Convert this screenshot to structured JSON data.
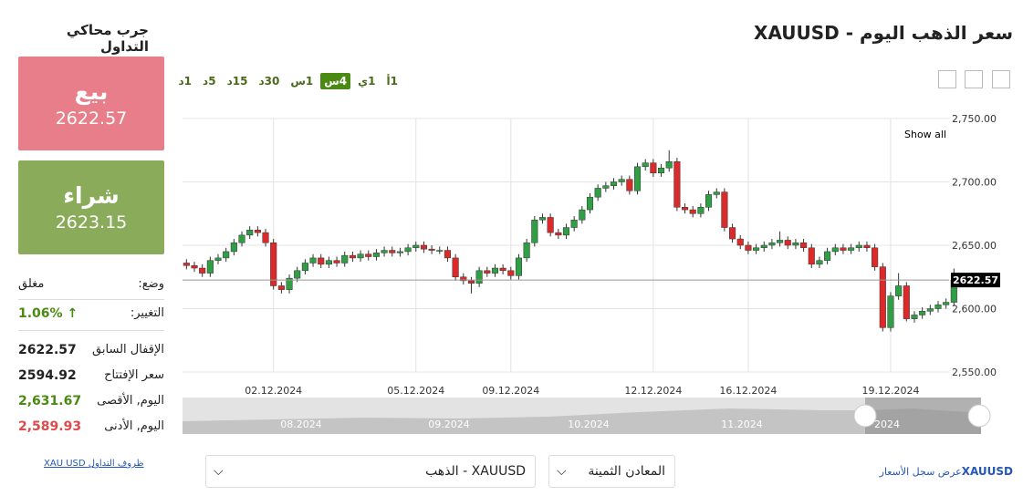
{
  "header": {
    "title": "سعر الذهب اليوم - XAUUSD",
    "simulator_title": "جرب محاكي التداول"
  },
  "sell": {
    "label": "بيع",
    "price": "2622.57"
  },
  "buy": {
    "label": "شراء",
    "price": "2623.15"
  },
  "status": {
    "label": "وضع:",
    "value": "مغلق"
  },
  "change": {
    "label": "التغيير:",
    "value": "1.06%"
  },
  "stats": [
    {
      "label": "الإقفال السابق",
      "value": "2622.57"
    },
    {
      "label": "سعر الإفتتاح",
      "value": "2594.92"
    },
    {
      "label": "اليوم, الأقصى",
      "value": "2,631.67"
    },
    {
      "label": "اليوم, الأدنى",
      "value": "2,589.93"
    }
  ],
  "timeframes": [
    "1أ",
    "1ي",
    "4س",
    "1س",
    "30د",
    "15د",
    "5د",
    "1د"
  ],
  "active_timeframe": "4س",
  "footer": {
    "terms_link": "XAU USD ظروف التداول",
    "instrument_select": "XAUUSD - الذهب",
    "category_select": "المعادن الثمينة",
    "history_symbol": "XAUUSD",
    "history_text": "عرض سجل الأسعار"
  },
  "chart_data": {
    "type": "candlestick",
    "categories": [
      null,
      null,
      null,
      null,
      null,
      null,
      null,
      null,
      null,
      null,
      null,
      "02.12.2024",
      null,
      null,
      null,
      null,
      null,
      null,
      null,
      null,
      null,
      null,
      null,
      null,
      null,
      null,
      null,
      null,
      null,
      "05.12.2024",
      null,
      null,
      null,
      null,
      null,
      null,
      null,
      null,
      null,
      null,
      null,
      "09.12.2024",
      null,
      null,
      null,
      null,
      null,
      null,
      null,
      null,
      null,
      null,
      null,
      null,
      null,
      null,
      null,
      null,
      null,
      "12.12.2024",
      null,
      null,
      null,
      null,
      null,
      null,
      null,
      null,
      null,
      null,
      null,
      "16.12.2024",
      null,
      null,
      null,
      null,
      null,
      null,
      null,
      null,
      null,
      null,
      null,
      null,
      null,
      null,
      null,
      null,
      null,
      "19.12.2024",
      null,
      null,
      null,
      null,
      null,
      null,
      null,
      null
    ],
    "open": [
      2636,
      2634,
      2632,
      2628,
      2638,
      2640,
      2645,
      2652,
      2658,
      2662,
      2660,
      2652,
      2618,
      2615,
      2624,
      2630,
      2636,
      2640,
      2635,
      2638,
      2636,
      2642,
      2640,
      2643,
      2641,
      2644,
      2646,
      2644,
      2645,
      2648,
      2650,
      2647,
      2646,
      2646,
      2640,
      2625,
      2622,
      2620,
      2630,
      2628,
      2632,
      2630,
      2626,
      2640,
      2652,
      2670,
      2672,
      2660,
      2658,
      2664,
      2670,
      2678,
      2688,
      2695,
      2697,
      2700,
      2702,
      2693,
      2712,
      2715,
      2707,
      2711,
      2716,
      2680,
      2678,
      2675,
      2680,
      2690,
      2692,
      2664,
      2655,
      2650,
      2646,
      2648,
      2650,
      2652,
      2654,
      2650,
      2652,
      2648,
      2635,
      2638,
      2645,
      2648,
      2646,
      2648,
      2650,
      2648,
      2633,
      2585,
      2610,
      2618,
      2592,
      2595,
      2598,
      2600,
      2603,
      2605
    ],
    "high": [
      2639,
      2637,
      2635,
      2641,
      2643,
      2648,
      2655,
      2661,
      2665,
      2665,
      2663,
      2655,
      2621,
      2627,
      2633,
      2639,
      2643,
      2643,
      2641,
      2641,
      2645,
      2645,
      2646,
      2646,
      2647,
      2649,
      2649,
      2648,
      2651,
      2653,
      2653,
      2650,
      2649,
      2649,
      2643,
      2628,
      2625,
      2633,
      2633,
      2635,
      2635,
      2633,
      2643,
      2655,
      2673,
      2675,
      2675,
      2663,
      2667,
      2673,
      2681,
      2691,
      2698,
      2700,
      2703,
      2705,
      2705,
      2715,
      2718,
      2718,
      2714,
      2725,
      2719,
      2683,
      2681,
      2683,
      2693,
      2695,
      2695,
      2667,
      2658,
      2653,
      2651,
      2653,
      2655,
      2661,
      2657,
      2655,
      2655,
      2651,
      2641,
      2648,
      2651,
      2651,
      2651,
      2653,
      2653,
      2651,
      2636,
      2613,
      2628,
      2621,
      2598,
      2601,
      2603,
      2606,
      2608,
      2631.67
    ],
    "low": [
      2631,
      2629,
      2625,
      2625,
      2635,
      2637,
      2642,
      2649,
      2655,
      2657,
      2649,
      2615,
      2612,
      2612,
      2621,
      2627,
      2633,
      2632,
      2632,
      2633,
      2633,
      2637,
      2637,
      2638,
      2638,
      2641,
      2641,
      2641,
      2642,
      2645,
      2644,
      2643,
      2643,
      2637,
      2622,
      2619,
      2612,
      2617,
      2625,
      2625,
      2627,
      2623,
      2623,
      2637,
      2649,
      2667,
      2657,
      2655,
      2655,
      2661,
      2667,
      2675,
      2685,
      2692,
      2694,
      2697,
      2690,
      2690,
      2709,
      2704,
      2704,
      2708,
      2677,
      2675,
      2672,
      2672,
      2677,
      2687,
      2661,
      2652,
      2647,
      2643,
      2643,
      2645,
      2647,
      2649,
      2647,
      2647,
      2645,
      2632,
      2632,
      2635,
      2642,
      2643,
      2643,
      2645,
      2645,
      2630,
      2582,
      2582,
      2607,
      2589.93,
      2589,
      2592,
      2595,
      2597,
      2600,
      2602
    ],
    "close": [
      2634,
      2632,
      2628,
      2638,
      2640,
      2645,
      2652,
      2658,
      2662,
      2660,
      2652,
      2618,
      2615,
      2624,
      2630,
      2636,
      2640,
      2635,
      2638,
      2636,
      2642,
      2640,
      2643,
      2641,
      2644,
      2646,
      2644,
      2645,
      2648,
      2650,
      2647,
      2646,
      2646,
      2640,
      2625,
      2622,
      2620,
      2630,
      2628,
      2632,
      2630,
      2626,
      2640,
      2652,
      2670,
      2672,
      2660,
      2658,
      2664,
      2670,
      2678,
      2688,
      2695,
      2697,
      2700,
      2702,
      2693,
      2712,
      2715,
      2707,
      2711,
      2716,
      2680,
      2678,
      2675,
      2680,
      2690,
      2692,
      2664,
      2655,
      2650,
      2646,
      2648,
      2650,
      2652,
      2654,
      2650,
      2652,
      2648,
      2635,
      2638,
      2645,
      2648,
      2646,
      2648,
      2650,
      2648,
      2633,
      2585,
      2610,
      2618,
      2592,
      2595,
      2598,
      2600,
      2603,
      2605,
      2622.57
    ],
    "up_color": "#2f9e44",
    "down_color": "#dc2a2a",
    "ylim": [
      2550,
      2750
    ],
    "yticks": [
      {
        "value": 2550,
        "label": "2,550.00"
      },
      {
        "value": 2600,
        "label": "2,600.00"
      },
      {
        "value": 2650,
        "label": "2,650.00"
      },
      {
        "value": 2700,
        "label": "2,700.00"
      },
      {
        "value": 2750,
        "label": "2,750.00"
      }
    ],
    "grid": true,
    "last_price": 2622.57,
    "reset_label": "Show all",
    "navigator_labels": [
      "08.2024",
      "09.2024",
      "10.2024",
      "11.2024",
      "2024"
    ]
  }
}
